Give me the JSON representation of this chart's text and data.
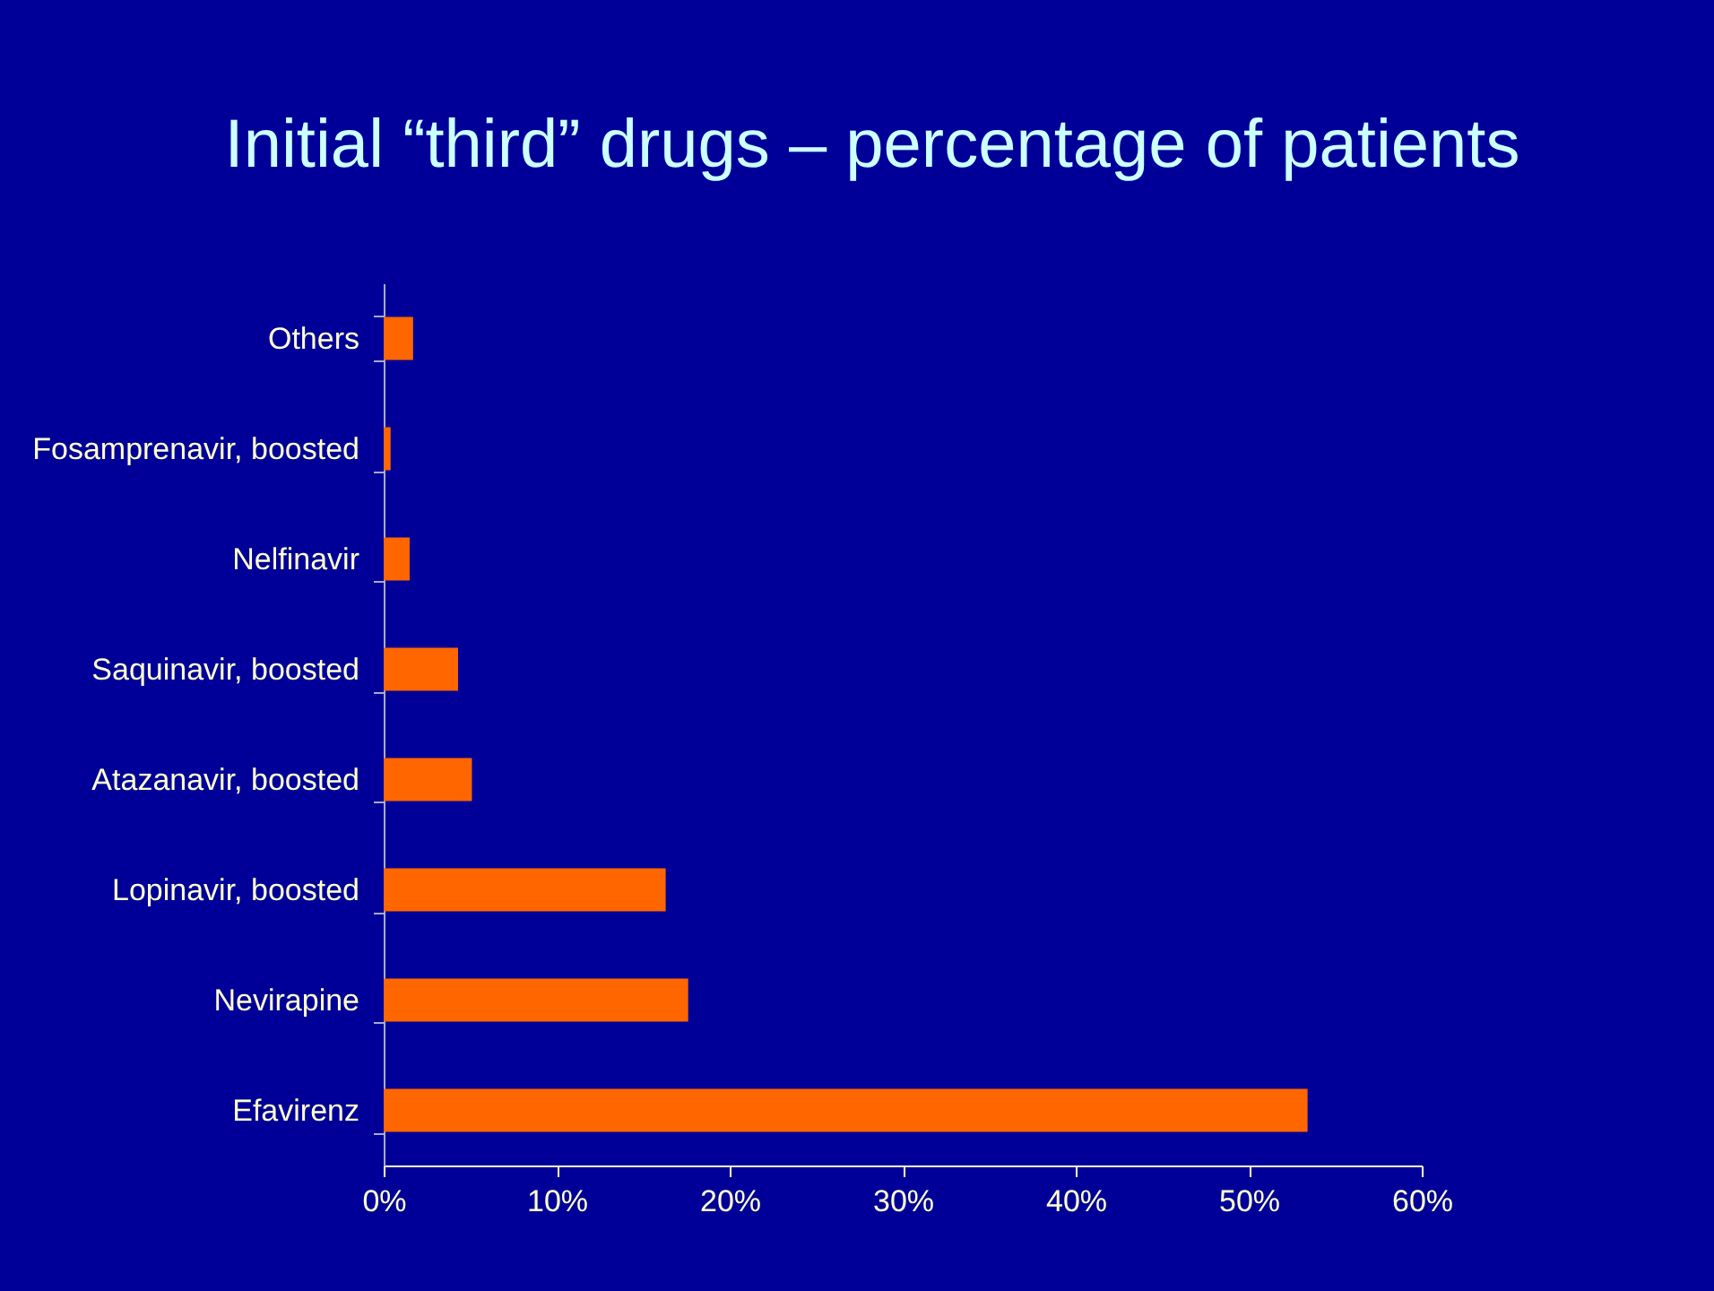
{
  "chart_data": {
    "type": "bar",
    "orientation": "horizontal",
    "title": "Initial “third” drugs – percentage of patients",
    "categories": [
      "Others",
      "Fosamprenavir, boosted",
      "Nelfinavir",
      "Saquinavir, boosted",
      "Atazanavir, boosted",
      "Lopinavir, boosted",
      "Nevirapine",
      "Efavirenz"
    ],
    "values": [
      1.7,
      0.4,
      1.5,
      4.3,
      5.1,
      16.3,
      17.6,
      53.4
    ],
    "color": "#ff6600",
    "xlim": [
      0,
      60
    ],
    "xticks": [
      {
        "value": 0,
        "label": "0%"
      },
      {
        "value": 10,
        "label": "10%"
      },
      {
        "value": 20,
        "label": "20%"
      },
      {
        "value": 30,
        "label": "30%"
      },
      {
        "value": 40,
        "label": "40%"
      },
      {
        "value": 50,
        "label": "50%"
      },
      {
        "value": 60,
        "label": "60%"
      }
    ],
    "grid": false
  }
}
